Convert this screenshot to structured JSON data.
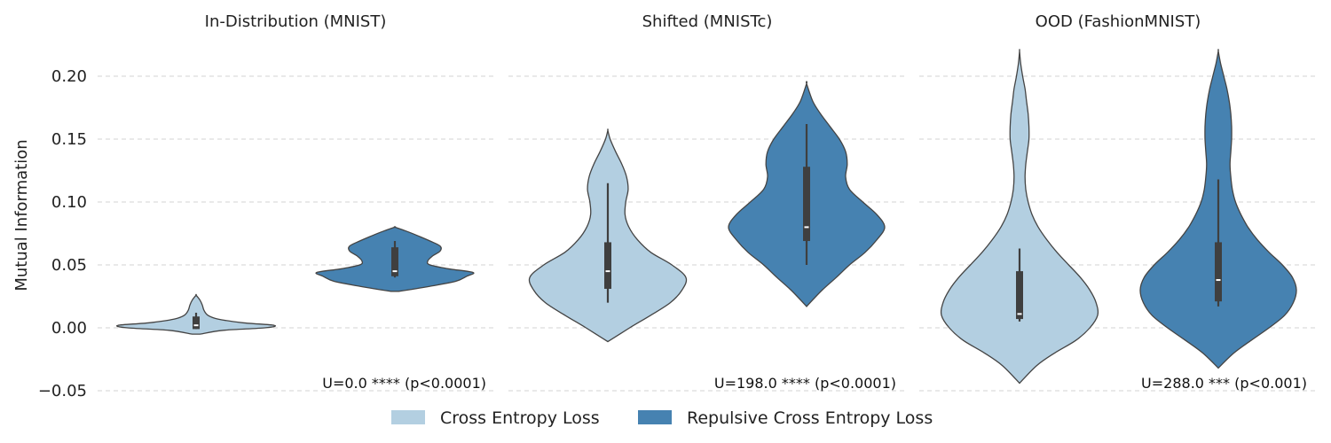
{
  "chart_data": {
    "type": "violin",
    "ylabel": "Mutual Information",
    "ylim": [
      -0.05,
      0.22
    ],
    "yticks": [
      -0.05,
      0.0,
      0.05,
      0.1,
      0.15,
      0.2
    ],
    "ytick_labels": [
      "−0.05",
      "0.00",
      "0.05",
      "0.10",
      "0.15",
      "0.20"
    ],
    "grid": true,
    "legend_position": "bottom-center",
    "legend": [
      {
        "name": "Cross Entropy Loss",
        "color": "#b3cfe1"
      },
      {
        "name": "Repulsive Cross Entropy Loss",
        "color": "#4682b1"
      }
    ],
    "panels": [
      {
        "title": "In-Distribution (MNIST)",
        "annotation": "U=0.0 **** (p<0.0001)",
        "violins": [
          {
            "series": "Cross Entropy Loss",
            "min": -0.005,
            "max": 0.026,
            "q1": -0.001,
            "median": 0.002,
            "q3": 0.009,
            "whisker_low": -0.001,
            "whisker_high": 0.012,
            "profile": [
              [
                -0.005,
                0.05
              ],
              [
                -0.002,
                0.35
              ],
              [
                0.0,
                0.88
              ],
              [
                0.002,
                1.0
              ],
              [
                0.004,
                0.6
              ],
              [
                0.007,
                0.28
              ],
              [
                0.01,
                0.15
              ],
              [
                0.014,
                0.1
              ],
              [
                0.018,
                0.08
              ],
              [
                0.022,
                0.05
              ],
              [
                0.026,
                0.0
              ]
            ]
          },
          {
            "series": "Repulsive Cross Entropy Loss",
            "min": 0.029,
            "max": 0.08,
            "q1": 0.041,
            "median": 0.045,
            "q3": 0.064,
            "whisker_low": 0.04,
            "whisker_high": 0.069,
            "profile": [
              [
                0.029,
                0.05
              ],
              [
                0.033,
                0.45
              ],
              [
                0.037,
                0.78
              ],
              [
                0.041,
                0.92
              ],
              [
                0.044,
                1.0
              ],
              [
                0.047,
                0.68
              ],
              [
                0.05,
                0.45
              ],
              [
                0.053,
                0.42
              ],
              [
                0.057,
                0.48
              ],
              [
                0.061,
                0.58
              ],
              [
                0.065,
                0.58
              ],
              [
                0.069,
                0.45
              ],
              [
                0.073,
                0.3
              ],
              [
                0.077,
                0.14
              ],
              [
                0.08,
                0.0
              ]
            ]
          }
        ]
      },
      {
        "title": "Shifted (MNISTc)",
        "annotation": "U=198.0 **** (p<0.0001)",
        "violins": [
          {
            "series": "Cross Entropy Loss",
            "min": -0.011,
            "max": 0.157,
            "q1": 0.031,
            "median": 0.045,
            "q3": 0.068,
            "whisker_low": 0.02,
            "whisker_high": 0.115,
            "profile": [
              [
                -0.011,
                0.0
              ],
              [
                0.0,
                0.28
              ],
              [
                0.01,
                0.55
              ],
              [
                0.02,
                0.8
              ],
              [
                0.03,
                0.95
              ],
              [
                0.04,
                1.0
              ],
              [
                0.05,
                0.82
              ],
              [
                0.06,
                0.55
              ],
              [
                0.07,
                0.38
              ],
              [
                0.08,
                0.27
              ],
              [
                0.09,
                0.22
              ],
              [
                0.1,
                0.23
              ],
              [
                0.11,
                0.26
              ],
              [
                0.12,
                0.24
              ],
              [
                0.13,
                0.18
              ],
              [
                0.14,
                0.1
              ],
              [
                0.15,
                0.03
              ],
              [
                0.157,
                0.0
              ]
            ]
          },
          {
            "series": "Repulsive Cross Entropy Loss",
            "min": 0.017,
            "max": 0.194,
            "q1": 0.069,
            "median": 0.08,
            "q3": 0.128,
            "whisker_low": 0.05,
            "whisker_high": 0.162,
            "profile": [
              [
                0.017,
                0.0
              ],
              [
                0.03,
                0.2
              ],
              [
                0.04,
                0.38
              ],
              [
                0.05,
                0.55
              ],
              [
                0.06,
                0.75
              ],
              [
                0.07,
                0.9
              ],
              [
                0.08,
                1.0
              ],
              [
                0.09,
                0.9
              ],
              [
                0.1,
                0.72
              ],
              [
                0.11,
                0.55
              ],
              [
                0.12,
                0.5
              ],
              [
                0.13,
                0.52
              ],
              [
                0.14,
                0.5
              ],
              [
                0.15,
                0.42
              ],
              [
                0.16,
                0.3
              ],
              [
                0.17,
                0.18
              ],
              [
                0.18,
                0.08
              ],
              [
                0.194,
                0.0
              ]
            ]
          }
        ]
      },
      {
        "title": "OOD (FashionMNIST)",
        "annotation": "U=288.0 *** (p<0.001)",
        "violins": [
          {
            "series": "Cross Entropy Loss",
            "min": -0.044,
            "max": 0.22,
            "q1": 0.007,
            "median": 0.011,
            "q3": 0.045,
            "whisker_low": 0.005,
            "whisker_high": 0.063,
            "profile": [
              [
                -0.044,
                0.0
              ],
              [
                -0.03,
                0.22
              ],
              [
                -0.02,
                0.45
              ],
              [
                -0.01,
                0.72
              ],
              [
                0.0,
                0.9
              ],
              [
                0.01,
                1.0
              ],
              [
                0.02,
                0.98
              ],
              [
                0.03,
                0.9
              ],
              [
                0.04,
                0.78
              ],
              [
                0.05,
                0.63
              ],
              [
                0.06,
                0.48
              ],
              [
                0.07,
                0.35
              ],
              [
                0.08,
                0.24
              ],
              [
                0.09,
                0.16
              ],
              [
                0.1,
                0.11
              ],
              [
                0.11,
                0.08
              ],
              [
                0.12,
                0.07
              ],
              [
                0.13,
                0.08
              ],
              [
                0.14,
                0.1
              ],
              [
                0.15,
                0.12
              ],
              [
                0.16,
                0.12
              ],
              [
                0.17,
                0.11
              ],
              [
                0.18,
                0.09
              ],
              [
                0.19,
                0.07
              ],
              [
                0.2,
                0.04
              ],
              [
                0.21,
                0.015
              ],
              [
                0.22,
                0.0
              ]
            ]
          },
          {
            "series": "Repulsive Cross Entropy Loss",
            "min": -0.032,
            "max": 0.22,
            "q1": 0.021,
            "median": 0.038,
            "q3": 0.068,
            "whisker_low": 0.017,
            "whisker_high": 0.118,
            "profile": [
              [
                -0.032,
                0.0
              ],
              [
                -0.02,
                0.2
              ],
              [
                -0.01,
                0.42
              ],
              [
                0.0,
                0.65
              ],
              [
                0.01,
                0.85
              ],
              [
                0.02,
                0.96
              ],
              [
                0.03,
                1.0
              ],
              [
                0.04,
                0.95
              ],
              [
                0.05,
                0.82
              ],
              [
                0.06,
                0.65
              ],
              [
                0.07,
                0.5
              ],
              [
                0.08,
                0.38
              ],
              [
                0.09,
                0.29
              ],
              [
                0.1,
                0.22
              ],
              [
                0.11,
                0.18
              ],
              [
                0.12,
                0.16
              ],
              [
                0.13,
                0.15
              ],
              [
                0.14,
                0.16
              ],
              [
                0.15,
                0.17
              ],
              [
                0.16,
                0.17
              ],
              [
                0.17,
                0.16
              ],
              [
                0.18,
                0.14
              ],
              [
                0.19,
                0.11
              ],
              [
                0.2,
                0.07
              ],
              [
                0.21,
                0.03
              ],
              [
                0.22,
                0.0
              ]
            ]
          }
        ]
      }
    ]
  }
}
